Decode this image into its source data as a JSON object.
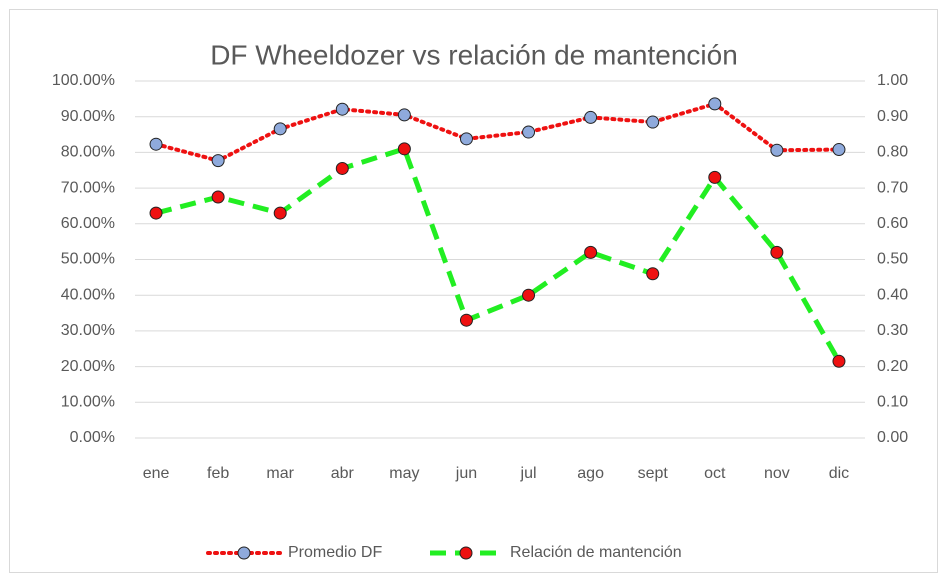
{
  "chart_data": {
    "type": "line",
    "title": "DF Wheeldozer vs relación de mantención",
    "categories": [
      "ene",
      "feb",
      "mar",
      "abr",
      "may",
      "jun",
      "jul",
      "ago",
      "sept",
      "oct",
      "nov",
      "dic"
    ],
    "series": [
      {
        "name": "Promedio DF",
        "color": "#ee1111",
        "marker_color": "#8faadc",
        "line_style": "dotted",
        "values": [
          82.3,
          77.7,
          86.6,
          92.1,
          90.5,
          83.8,
          85.7,
          89.8,
          88.5,
          93.6,
          80.6,
          80.8
        ]
      },
      {
        "name": "Relación de mantención",
        "color": "#22ee22",
        "marker_color": "#ee1111",
        "line_style": "dashed",
        "axis": "y2",
        "values": [
          0.63,
          0.675,
          0.63,
          0.755,
          0.81,
          0.33,
          0.4,
          0.52,
          0.46,
          0.73,
          0.52,
          0.215
        ]
      }
    ],
    "ylim": [
      0,
      100
    ],
    "yticks": [
      {
        "value": 0,
        "label": "0.00%"
      },
      {
        "value": 10,
        "label": "10.00%"
      },
      {
        "value": 20,
        "label": "20.00%"
      },
      {
        "value": 30,
        "label": "30.00%"
      },
      {
        "value": 40,
        "label": "40.00%"
      },
      {
        "value": 50,
        "label": "50.00%"
      },
      {
        "value": 60,
        "label": "60.00%"
      },
      {
        "value": 70,
        "label": "70.00%"
      },
      {
        "value": 80,
        "label": "80.00%"
      },
      {
        "value": 90,
        "label": "90.00%"
      },
      {
        "value": 100,
        "label": "100.00%"
      }
    ],
    "y2lim": [
      0,
      1
    ],
    "y2ticks": [
      {
        "value": 0,
        "label": "0.00"
      },
      {
        "value": 0.1,
        "label": "0.10"
      },
      {
        "value": 0.2,
        "label": "0.20"
      },
      {
        "value": 0.3,
        "label": "0.30"
      },
      {
        "value": 0.4,
        "label": "0.40"
      },
      {
        "value": 0.5,
        "label": "0.50"
      },
      {
        "value": 0.6,
        "label": "0.60"
      },
      {
        "value": 0.7,
        "label": "0.70"
      },
      {
        "value": 0.8,
        "label": "0.80"
      },
      {
        "value": 0.9,
        "label": "0.90"
      },
      {
        "value": 1,
        "label": "1.00"
      }
    ],
    "grid": true,
    "legend": "bottom"
  }
}
